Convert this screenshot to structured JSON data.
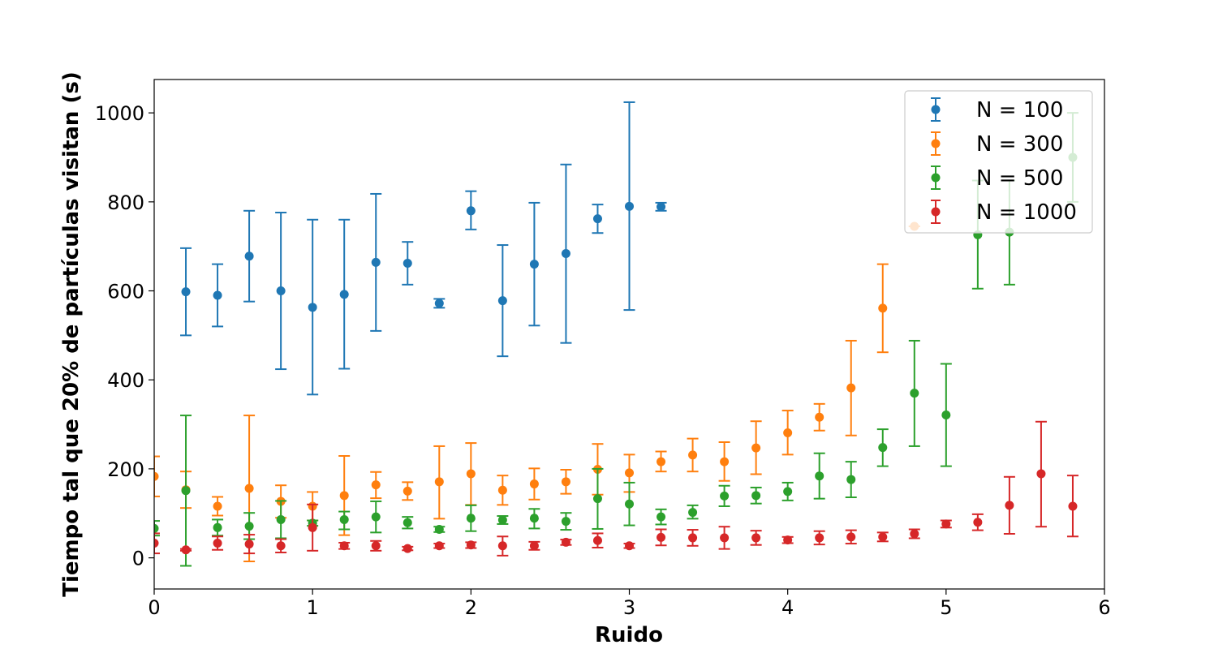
{
  "chart_data": {
    "type": "scatter",
    "title": "",
    "xlabel": "Ruido",
    "ylabel": "Tiempo tal que 20% de partículas visitan (s)",
    "xlim": [
      0,
      6
    ],
    "ylim": [
      -70,
      1075
    ],
    "xticks": [
      0,
      1,
      2,
      3,
      4,
      5,
      6
    ],
    "xtick_labels": [
      "0",
      "1",
      "2",
      "3",
      "4",
      "5",
      "6"
    ],
    "yticks": [
      0,
      200,
      400,
      600,
      800,
      1000
    ],
    "ytick_labels": [
      "0",
      "200",
      "400",
      "600",
      "800",
      "1000"
    ],
    "grid": false,
    "legend_position": "top-right",
    "error_bars": true,
    "series": [
      {
        "name": "N = 100",
        "color": "#1f77b4",
        "points": [
          {
            "x": 0.2,
            "y": 598,
            "lo": 500,
            "hi": 696
          },
          {
            "x": 0.4,
            "y": 590,
            "lo": 520,
            "hi": 660
          },
          {
            "x": 0.6,
            "y": 678,
            "lo": 576,
            "hi": 780
          },
          {
            "x": 0.8,
            "y": 600,
            "lo": 424,
            "hi": 776
          },
          {
            "x": 1.0,
            "y": 563,
            "lo": 367,
            "hi": 760
          },
          {
            "x": 1.2,
            "y": 592,
            "lo": 425,
            "hi": 760
          },
          {
            "x": 1.4,
            "y": 664,
            "lo": 510,
            "hi": 818
          },
          {
            "x": 1.6,
            "y": 662,
            "lo": 614,
            "hi": 710
          },
          {
            "x": 1.8,
            "y": 572,
            "lo": 562,
            "hi": 582
          },
          {
            "x": 2.0,
            "y": 780,
            "lo": 738,
            "hi": 824
          },
          {
            "x": 2.2,
            "y": 578,
            "lo": 453,
            "hi": 703
          },
          {
            "x": 2.4,
            "y": 660,
            "lo": 522,
            "hi": 798
          },
          {
            "x": 2.6,
            "y": 684,
            "lo": 483,
            "hi": 884
          },
          {
            "x": 2.8,
            "y": 762,
            "lo": 730,
            "hi": 794
          },
          {
            "x": 3.0,
            "y": 790,
            "lo": 557,
            "hi": 1024
          },
          {
            "x": 3.2,
            "y": 789,
            "lo": 780,
            "hi": 798
          }
        ]
      },
      {
        "name": "N = 300",
        "color": "#ff7f0e",
        "points": [
          {
            "x": 0.0,
            "y": 183,
            "lo": 138,
            "hi": 228
          },
          {
            "x": 0.2,
            "y": 153,
            "lo": 112,
            "hi": 194
          },
          {
            "x": 0.4,
            "y": 116,
            "lo": 95,
            "hi": 137
          },
          {
            "x": 0.6,
            "y": 156,
            "lo": -8,
            "hi": 320
          },
          {
            "x": 0.8,
            "y": 127,
            "lo": 90,
            "hi": 163
          },
          {
            "x": 1.0,
            "y": 116,
            "lo": 84,
            "hi": 148
          },
          {
            "x": 1.2,
            "y": 140,
            "lo": 51,
            "hi": 229
          },
          {
            "x": 1.4,
            "y": 164,
            "lo": 134,
            "hi": 193
          },
          {
            "x": 1.6,
            "y": 150,
            "lo": 130,
            "hi": 170
          },
          {
            "x": 1.8,
            "y": 171,
            "lo": 88,
            "hi": 251
          },
          {
            "x": 2.0,
            "y": 189,
            "lo": 119,
            "hi": 258
          },
          {
            "x": 2.2,
            "y": 152,
            "lo": 119,
            "hi": 185
          },
          {
            "x": 2.4,
            "y": 166,
            "lo": 131,
            "hi": 201
          },
          {
            "x": 2.6,
            "y": 171,
            "lo": 144,
            "hi": 198
          },
          {
            "x": 2.8,
            "y": 199,
            "lo": 142,
            "hi": 256
          },
          {
            "x": 3.0,
            "y": 191,
            "lo": 148,
            "hi": 232
          },
          {
            "x": 3.2,
            "y": 216,
            "lo": 194,
            "hi": 239
          },
          {
            "x": 3.4,
            "y": 231,
            "lo": 194,
            "hi": 268
          },
          {
            "x": 3.6,
            "y": 216,
            "lo": 173,
            "hi": 260
          },
          {
            "x": 3.8,
            "y": 247,
            "lo": 188,
            "hi": 307
          },
          {
            "x": 4.0,
            "y": 281,
            "lo": 232,
            "hi": 331
          },
          {
            "x": 4.2,
            "y": 316,
            "lo": 286,
            "hi": 346
          },
          {
            "x": 4.4,
            "y": 382,
            "lo": 275,
            "hi": 488
          },
          {
            "x": 4.6,
            "y": 561,
            "lo": 462,
            "hi": 660
          },
          {
            "x": 4.8,
            "y": 745,
            "lo": 745,
            "hi": 745
          }
        ]
      },
      {
        "name": "N = 500",
        "color": "#2ca02c",
        "points": [
          {
            "x": 0.0,
            "y": 66,
            "lo": 50,
            "hi": 83
          },
          {
            "x": 0.2,
            "y": 151,
            "lo": -18,
            "hi": 320
          },
          {
            "x": 0.4,
            "y": 68,
            "lo": 50,
            "hi": 86
          },
          {
            "x": 0.6,
            "y": 71,
            "lo": 42,
            "hi": 101
          },
          {
            "x": 0.8,
            "y": 86,
            "lo": 44,
            "hi": 128
          },
          {
            "x": 1.0,
            "y": 78,
            "lo": 72,
            "hi": 84
          },
          {
            "x": 1.2,
            "y": 86,
            "lo": 64,
            "hi": 104
          },
          {
            "x": 1.4,
            "y": 92,
            "lo": 57,
            "hi": 127
          },
          {
            "x": 1.6,
            "y": 79,
            "lo": 66,
            "hi": 92
          },
          {
            "x": 1.8,
            "y": 64,
            "lo": 58,
            "hi": 70
          },
          {
            "x": 2.0,
            "y": 89,
            "lo": 60,
            "hi": 118
          },
          {
            "x": 2.2,
            "y": 85,
            "lo": 76,
            "hi": 94
          },
          {
            "x": 2.4,
            "y": 89,
            "lo": 66,
            "hi": 110
          },
          {
            "x": 2.6,
            "y": 82,
            "lo": 63,
            "hi": 101
          },
          {
            "x": 2.8,
            "y": 133,
            "lo": 65,
            "hi": 200
          },
          {
            "x": 3.0,
            "y": 121,
            "lo": 73,
            "hi": 169
          },
          {
            "x": 3.2,
            "y": 92,
            "lo": 75,
            "hi": 109
          },
          {
            "x": 3.4,
            "y": 102,
            "lo": 88,
            "hi": 118
          },
          {
            "x": 3.6,
            "y": 139,
            "lo": 116,
            "hi": 162
          },
          {
            "x": 3.8,
            "y": 140,
            "lo": 122,
            "hi": 158
          },
          {
            "x": 4.0,
            "y": 149,
            "lo": 129,
            "hi": 169
          },
          {
            "x": 4.2,
            "y": 184,
            "lo": 133,
            "hi": 235
          },
          {
            "x": 4.4,
            "y": 176,
            "lo": 136,
            "hi": 216
          },
          {
            "x": 4.6,
            "y": 248,
            "lo": 206,
            "hi": 289
          },
          {
            "x": 4.8,
            "y": 370,
            "lo": 251,
            "hi": 488
          },
          {
            "x": 5.0,
            "y": 321,
            "lo": 206,
            "hi": 436
          },
          {
            "x": 5.2,
            "y": 726,
            "lo": 605,
            "hi": 848
          },
          {
            "x": 5.4,
            "y": 732,
            "lo": 614,
            "hi": 848
          },
          {
            "x": 5.8,
            "y": 900,
            "lo": 800,
            "hi": 1000
          }
        ]
      },
      {
        "name": "N = 1000",
        "color": "#d62728",
        "points": [
          {
            "x": 0.0,
            "y": 33,
            "lo": 10,
            "hi": 55
          },
          {
            "x": 0.2,
            "y": 18,
            "lo": 16,
            "hi": 20
          },
          {
            "x": 0.4,
            "y": 33,
            "lo": 18,
            "hi": 48
          },
          {
            "x": 0.6,
            "y": 31,
            "lo": 10,
            "hi": 52
          },
          {
            "x": 0.8,
            "y": 27,
            "lo": 12,
            "hi": 42
          },
          {
            "x": 1.0,
            "y": 68,
            "lo": 16,
            "hi": 120
          },
          {
            "x": 1.2,
            "y": 27,
            "lo": 20,
            "hi": 34
          },
          {
            "x": 1.4,
            "y": 27,
            "lo": 16,
            "hi": 38
          },
          {
            "x": 1.6,
            "y": 21,
            "lo": 17,
            "hi": 25
          },
          {
            "x": 1.8,
            "y": 27,
            "lo": 22,
            "hi": 32
          },
          {
            "x": 2.0,
            "y": 29,
            "lo": 22,
            "hi": 35
          },
          {
            "x": 2.2,
            "y": 27,
            "lo": 5,
            "hi": 48
          },
          {
            "x": 2.4,
            "y": 27,
            "lo": 18,
            "hi": 36
          },
          {
            "x": 2.6,
            "y": 35,
            "lo": 29,
            "hi": 41
          },
          {
            "x": 2.8,
            "y": 39,
            "lo": 23,
            "hi": 55
          },
          {
            "x": 3.0,
            "y": 27,
            "lo": 22,
            "hi": 32
          },
          {
            "x": 3.2,
            "y": 46,
            "lo": 28,
            "hi": 64
          },
          {
            "x": 3.4,
            "y": 45,
            "lo": 27,
            "hi": 63
          },
          {
            "x": 3.6,
            "y": 45,
            "lo": 20,
            "hi": 70
          },
          {
            "x": 3.8,
            "y": 45,
            "lo": 29,
            "hi": 61
          },
          {
            "x": 4.0,
            "y": 40,
            "lo": 33,
            "hi": 47
          },
          {
            "x": 4.2,
            "y": 45,
            "lo": 30,
            "hi": 60
          },
          {
            "x": 4.4,
            "y": 47,
            "lo": 32,
            "hi": 62
          },
          {
            "x": 4.6,
            "y": 47,
            "lo": 37,
            "hi": 57
          },
          {
            "x": 4.8,
            "y": 54,
            "lo": 44,
            "hi": 64
          },
          {
            "x": 5.0,
            "y": 76,
            "lo": 68,
            "hi": 84
          },
          {
            "x": 5.2,
            "y": 80,
            "lo": 62,
            "hi": 98
          },
          {
            "x": 5.4,
            "y": 118,
            "lo": 54,
            "hi": 182
          },
          {
            "x": 5.6,
            "y": 189,
            "lo": 70,
            "hi": 306
          },
          {
            "x": 5.8,
            "y": 116,
            "lo": 48,
            "hi": 185
          }
        ]
      }
    ]
  }
}
